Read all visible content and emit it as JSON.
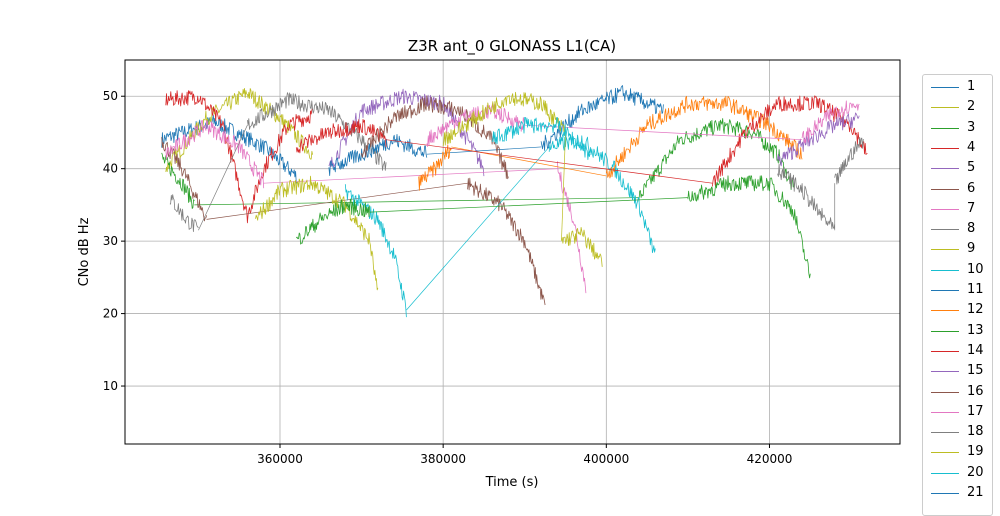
{
  "chart_data": {
    "type": "line",
    "title": "Z3R ant_0 GLONASS L1(CA)",
    "xlabel": "Time (s)",
    "ylabel": "CNo dB Hz",
    "xlim": [
      341000,
      436000
    ],
    "ylim": [
      2,
      55
    ],
    "xticks": [
      360000,
      380000,
      400000,
      420000
    ],
    "yticks": [
      10,
      20,
      30,
      40,
      50
    ],
    "grid": true,
    "legend_position": "right-outside",
    "colors": [
      "#1f77b4",
      "#bcbd22",
      "#2ca02c",
      "#d62728",
      "#9467bd",
      "#8c564b",
      "#e377c2",
      "#7f7f7f",
      "#bcbd22",
      "#17becf",
      "#1f77b4",
      "#ff7f0e",
      "#2ca02c",
      "#d62728",
      "#9467bd",
      "#8c564b",
      "#e377c2",
      "#7f7f7f",
      "#bcbd22",
      "#17becf",
      "#1f77b4"
    ],
    "series": [
      {
        "name": "1",
        "passes": [
          [
            [
              345500,
              44
            ],
            [
              352000,
              46.5
            ],
            [
              358000,
              43
            ],
            [
              362000,
              39
            ]
          ]
        ]
      },
      {
        "name": "2",
        "passes": [
          [
            [
              346000,
              40
            ],
            [
              351000,
              47
            ],
            [
              356000,
              50.5
            ],
            [
              360000,
              47
            ],
            [
              364000,
              42
            ]
          ]
        ]
      },
      {
        "name": "3",
        "passes": [
          [
            [
              345500,
              41.5
            ],
            [
              348000,
              38
            ],
            [
              349500,
              35
            ]
          ],
          [
            [
              404000,
              36
            ],
            [
              409000,
              44
            ],
            [
              414000,
              46
            ],
            [
              418000,
              45
            ],
            [
              421000,
              42
            ],
            [
              423000,
              37
            ]
          ]
        ]
      },
      {
        "name": "4",
        "passes": [
          [
            [
              346000,
              49.5
            ],
            [
              350000,
              50
            ],
            [
              353000,
              46
            ],
            [
              356000,
              33.5
            ],
            [
              358000,
              40
            ],
            [
              361000,
              46
            ],
            [
              364000,
              47.5
            ]
          ]
        ]
      },
      {
        "name": "5",
        "passes": [
          [
            [
              366000,
              40
            ],
            [
              370000,
              48
            ],
            [
              375000,
              50
            ],
            [
              380000,
              49
            ],
            [
              383000,
              44
            ],
            [
              385000,
              40
            ]
          ]
        ]
      },
      {
        "name": "6",
        "passes": [
          [
            [
              345500,
              44
            ],
            [
              348000,
              40
            ],
            [
              351000,
              33
            ]
          ],
          [
            [
              383000,
              38
            ],
            [
              387000,
              35
            ],
            [
              390000,
              30
            ],
            [
              392500,
              21
            ]
          ]
        ]
      },
      {
        "name": "7",
        "passes": [
          [
            [
              346000,
              42
            ],
            [
              351000,
              46
            ],
            [
              355000,
              43
            ],
            [
              358000,
              38
            ]
          ],
          [
            [
              394000,
              40
            ],
            [
              396000,
              33
            ],
            [
              397500,
              23.5
            ]
          ]
        ]
      },
      {
        "name": "8",
        "passes": [
          [
            [
              346500,
              36
            ],
            [
              348500,
              33
            ],
            [
              350000,
              31.5
            ]
          ],
          [
            [
              356000,
              46
            ],
            [
              361000,
              49.5
            ],
            [
              366000,
              48
            ],
            [
              370000,
              44
            ],
            [
              373000,
              40
            ]
          ]
        ]
      },
      {
        "name": "9",
        "passes": [
          [
            [
              357000,
              33
            ],
            [
              360000,
              37
            ],
            [
              364000,
              38
            ],
            [
              368000,
              35
            ],
            [
              371000,
              30
            ],
            [
              372000,
              22.5
            ]
          ]
        ]
      },
      {
        "name": "10",
        "passes": [
          [
            [
              368000,
              37
            ],
            [
              372000,
              33
            ],
            [
              374000,
              28
            ],
            [
              375500,
              20.5
            ]
          ],
          [
            [
              393000,
              43
            ],
            [
              397000,
              44
            ],
            [
              401000,
              40
            ],
            [
              404000,
              35
            ],
            [
              406000,
              28
            ]
          ]
        ]
      },
      {
        "name": "11",
        "passes": [
          [
            [
              366000,
              40
            ],
            [
              370000,
              42
            ],
            [
              374000,
              44
            ],
            [
              378000,
              42
            ]
          ],
          [
            [
              392000,
              43
            ],
            [
              397000,
              48
            ],
            [
              402000,
              50.5
            ],
            [
              407000,
              48
            ]
          ]
        ]
      },
      {
        "name": "12",
        "passes": [
          [
            [
              377000,
              38
            ],
            [
              379000,
              40
            ],
            [
              381000,
              43
            ]
          ],
          [
            [
              400000,
              39
            ],
            [
              405000,
              46
            ],
            [
              410000,
              49
            ],
            [
              415000,
              49
            ],
            [
              420000,
              46
            ],
            [
              424000,
              42
            ]
          ]
        ]
      },
      {
        "name": "13",
        "passes": [
          [
            [
              362000,
              30
            ],
            [
              365000,
              33
            ],
            [
              368000,
              35
            ],
            [
              371000,
              34
            ]
          ],
          [
            [
              410000,
              36
            ],
            [
              415000,
              38
            ],
            [
              420000,
              38
            ],
            [
              423000,
              34
            ],
            [
              425000,
              25
            ]
          ]
        ]
      },
      {
        "name": "14",
        "passes": [
          [
            [
              362000,
              43
            ],
            [
              366000,
              45
            ],
            [
              370000,
              46
            ],
            [
              373000,
              44
            ]
          ],
          [
            [
              413000,
              38
            ],
            [
              417000,
              45
            ],
            [
              421000,
              49
            ],
            [
              426000,
              49
            ],
            [
              430000,
              46
            ],
            [
              432000,
              42
            ]
          ]
        ]
      },
      {
        "name": "15",
        "passes": [
          [
            [
              421000,
              41
            ],
            [
              425000,
              44
            ],
            [
              428000,
              46
            ],
            [
              431000,
              47
            ]
          ]
        ]
      },
      {
        "name": "16",
        "passes": [
          [
            [
              370000,
              42
            ],
            [
              374000,
              47
            ],
            [
              378000,
              49
            ],
            [
              382000,
              48
            ],
            [
              386000,
              44
            ],
            [
              388000,
              39
            ]
          ]
        ]
      },
      {
        "name": "17",
        "passes": [
          [
            [
              378000,
              44
            ],
            [
              382000,
              47
            ],
            [
              386000,
              48
            ],
            [
              390000,
              46
            ]
          ],
          [
            [
              424000,
              44
            ],
            [
              428000,
              48
            ],
            [
              431000,
              49
            ]
          ]
        ]
      },
      {
        "name": "18",
        "passes": [
          [
            [
              421000,
              40
            ],
            [
              424000,
              37
            ],
            [
              426000,
              34
            ],
            [
              428000,
              31.5
            ]
          ],
          [
            [
              428000,
              38
            ],
            [
              430000,
              42
            ],
            [
              431500,
              44
            ]
          ]
        ]
      },
      {
        "name": "19",
        "passes": [
          [
            [
              380000,
              44
            ],
            [
              384000,
              47
            ],
            [
              388000,
              50
            ],
            [
              392000,
              49
            ],
            [
              395000,
              45
            ]
          ],
          [
            [
              394500,
              30
            ],
            [
              397000,
              31
            ],
            [
              399500,
              27
            ]
          ]
        ]
      },
      {
        "name": "20",
        "passes": [
          [
            [
              386000,
              44
            ],
            [
              390000,
              46
            ],
            [
              394000,
              46
            ],
            [
              398000,
              42
            ]
          ]
        ]
      },
      {
        "name": "21",
        "passes": []
      }
    ]
  }
}
